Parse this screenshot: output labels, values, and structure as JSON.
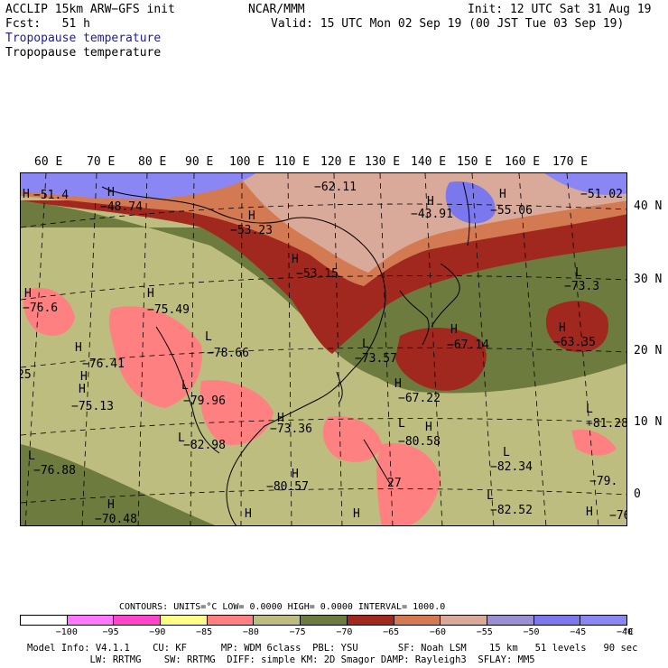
{
  "header": {
    "model": "ACCLIP 15km ARW−GFS init",
    "fcst": "Fcst:   51 h",
    "org": "NCAR/MMM",
    "init": "Init: 12 UTC Sat 31 Aug 19",
    "valid": "Valid: 15 UTC Mon 02 Sep 19 (00 JST Tue 03 Sep 19)",
    "field1": "Tropopause temperature",
    "field2": "Tropopause temperature"
  },
  "map": {
    "lon_labels": [
      "60 E",
      "70 E",
      "80 E",
      "90 E",
      "100 E",
      "110 E",
      "120 E",
      "130 E",
      "140 E",
      "150 E",
      "160 E",
      "170 E"
    ],
    "lat_labels": [
      "40 N",
      "30 N",
      "20 N",
      "10 N",
      "0"
    ],
    "annotations": [
      {
        "hl": "H",
        "value": "−51.4"
      },
      {
        "hl": "H",
        "value": "−48.74"
      },
      {
        "hl": "",
        "value": "−62.11"
      },
      {
        "hl": "H",
        "value": "−53.23"
      },
      {
        "hl": "H",
        "value": "−43.91"
      },
      {
        "hl": "H",
        "value": "−55.06"
      },
      {
        "hl": "",
        "value": "−51.02"
      },
      {
        "hl": "H",
        "value": "−53.15"
      },
      {
        "hl": "H",
        "value": "−76.6"
      },
      {
        "hl": "H",
        "value": "−75.49"
      },
      {
        "hl": "L",
        "value": "−73.3"
      },
      {
        "hl": "H",
        "value": "−76.41"
      },
      {
        "hl": "L",
        "value": "−78.66"
      },
      {
        "hl": "L",
        "value": "−73.57"
      },
      {
        "hl": "H",
        "value": "−67.14"
      },
      {
        "hl": "H",
        "value": "−63.35"
      },
      {
        "hl": "H",
        "value": "−75.13"
      },
      {
        "hl": "L",
        "value": "−79.96"
      },
      {
        "hl": "H",
        "value": "−67.22"
      },
      {
        "hl": "H",
        "value": "−73.36"
      },
      {
        "hl": "L",
        "value": "−82.98"
      },
      {
        "hl": "L",
        "value": "−80.58"
      },
      {
        "hl": "L",
        "value": "−81.28"
      },
      {
        "hl": "L",
        "value": "−76.88"
      },
      {
        "hl": "L",
        "value": "−82.34"
      },
      {
        "hl": "H",
        "value": "−80.57"
      },
      {
        "hl": "",
        "value": "27"
      },
      {
        "hl": "",
        "value": "−79."
      },
      {
        "hl": "L",
        "value": "−82.52"
      },
      {
        "hl": "H",
        "value": "−70.48"
      },
      {
        "hl": "",
        "value": "25"
      },
      {
        "hl": "",
        "value": "−76"
      },
      {
        "hl": "H",
        "value": ""
      },
      {
        "hl": "H",
        "value": ""
      },
      {
        "hl": "H",
        "value": ""
      },
      {
        "hl": "H",
        "value": ""
      },
      {
        "hl": "H",
        "value": ""
      }
    ]
  },
  "colors": {
    "c_-100": "#ffffff",
    "c_-95": "#ff77ff",
    "c_-90": "#ff44cc",
    "c_-85": "#ffff88",
    "c_-80": "#ff8080",
    "c_-75": "#bdbd7f",
    "c_-70": "#6e7b3e",
    "c_-65": "#a0281e",
    "c_-60": "#d47a52",
    "c_-55": "#d9a99a",
    "c_-50": "#9a8fd1",
    "c_-45": "#7b78ee",
    "c_-40": "#8a87f5"
  },
  "legend": {
    "contours_text": "CONTOURS:  UNITS=°C  LOW=  0.0000      HIGH=  0.0000      INTERVAL=   1000.0",
    "ticks": [
      "−100",
      "−95",
      "−90",
      "−85",
      "−80",
      "−75",
      "−70",
      "−65",
      "−60",
      "−55",
      "−50",
      "−45",
      "−40"
    ],
    "unit": "°C",
    "bins": [
      "#ffffff",
      "#ff77ff",
      "#ff44cc",
      "#ffff88",
      "#ff8080",
      "#bdbd7f",
      "#6e7b3e",
      "#a0281e",
      "#d47a52",
      "#d9a99a",
      "#9a8fd1",
      "#7b78ee",
      "#8a87f5"
    ]
  },
  "footer": {
    "line1": "Model Info: V4.1.1    CU: KF      MP: WDM 6class  PBL: YSU       SF: Noah LSM    15 km   51 levels   90 sec",
    "line2": "           LW: RRTMG    SW: RRTMG  DIFF: simple KM: 2D Smagor DAMP: Rayleigh3  SFLAY: MM5"
  }
}
